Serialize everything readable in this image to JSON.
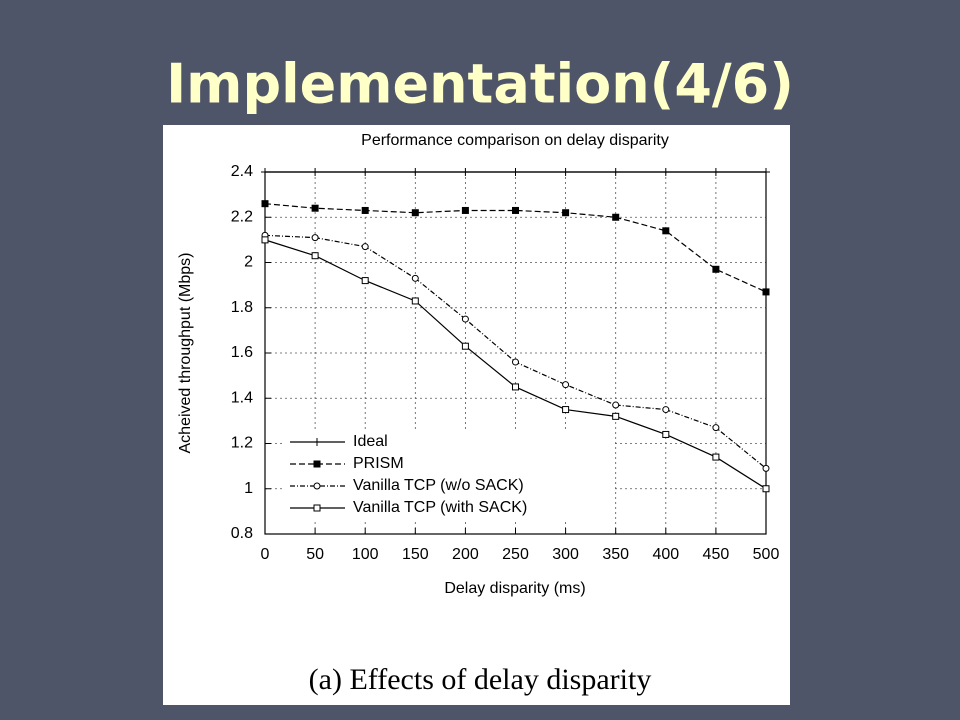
{
  "slide_title": "Implementation(4/6)",
  "caption": "(a) Effects of delay disparity",
  "chart_data": {
    "type": "line",
    "title": "Performance comparison on delay disparity",
    "x_label": "Delay disparity (ms)",
    "y_label": "Acheived throughput (Mbps)",
    "x": [
      0,
      50,
      100,
      150,
      200,
      250,
      300,
      350,
      400,
      450,
      500
    ],
    "xlim": [
      0,
      500
    ],
    "xticks": [
      0,
      50,
      100,
      150,
      200,
      250,
      300,
      350,
      400,
      450,
      500
    ],
    "ylim": [
      0.8,
      2.4
    ],
    "yticks": [
      0.8,
      1,
      1.2,
      1.4,
      1.6,
      1.8,
      2,
      2.2,
      2.4
    ],
    "grid": true,
    "legend": "lower-left",
    "series": [
      {
        "name": "Ideal",
        "color": "#000000",
        "marker": "plus",
        "dash": "solid",
        "values": [
          2.4,
          2.4,
          2.4,
          2.4,
          2.4,
          2.4,
          2.4,
          2.4,
          2.4,
          2.4,
          2.4
        ]
      },
      {
        "name": "PRISM",
        "color": "#000000",
        "marker": "filled-square",
        "dash": "dashed",
        "values": [
          2.26,
          2.24,
          2.23,
          2.22,
          2.23,
          2.23,
          2.22,
          2.2,
          2.14,
          1.97,
          1.87
        ]
      },
      {
        "name": "Vanilla TCP (w/o SACK)",
        "color": "#000000",
        "marker": "circle",
        "dash": "dashdot",
        "values": [
          2.12,
          2.11,
          2.07,
          1.93,
          1.75,
          1.56,
          1.46,
          1.37,
          1.35,
          1.27,
          1.09
        ]
      },
      {
        "name": "Vanilla TCP (with SACK)",
        "color": "#000000",
        "marker": "square",
        "dash": "solid",
        "values": [
          2.1,
          2.03,
          1.92,
          1.83,
          1.63,
          1.45,
          1.35,
          1.32,
          1.24,
          1.14,
          1.0
        ]
      }
    ]
  }
}
